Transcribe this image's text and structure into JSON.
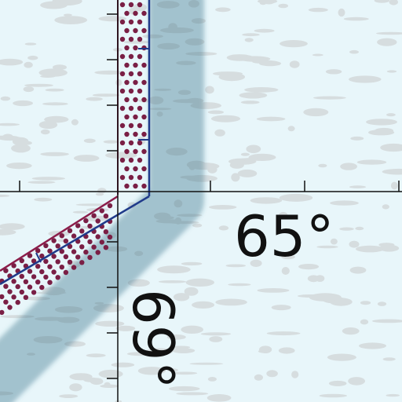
{
  "map": {
    "grid_labels": {
      "longitude": "65°",
      "latitude": "69°"
    },
    "colors": {
      "background": "#e8f6fa",
      "texture": "#c9c9c9",
      "graticule": "#111111",
      "boundary_blue": "#1f3a8a",
      "boundary_red": "#8b1d4a",
      "dots": "#7a1f45",
      "buffer_shade": "#2e6f86"
    }
  }
}
